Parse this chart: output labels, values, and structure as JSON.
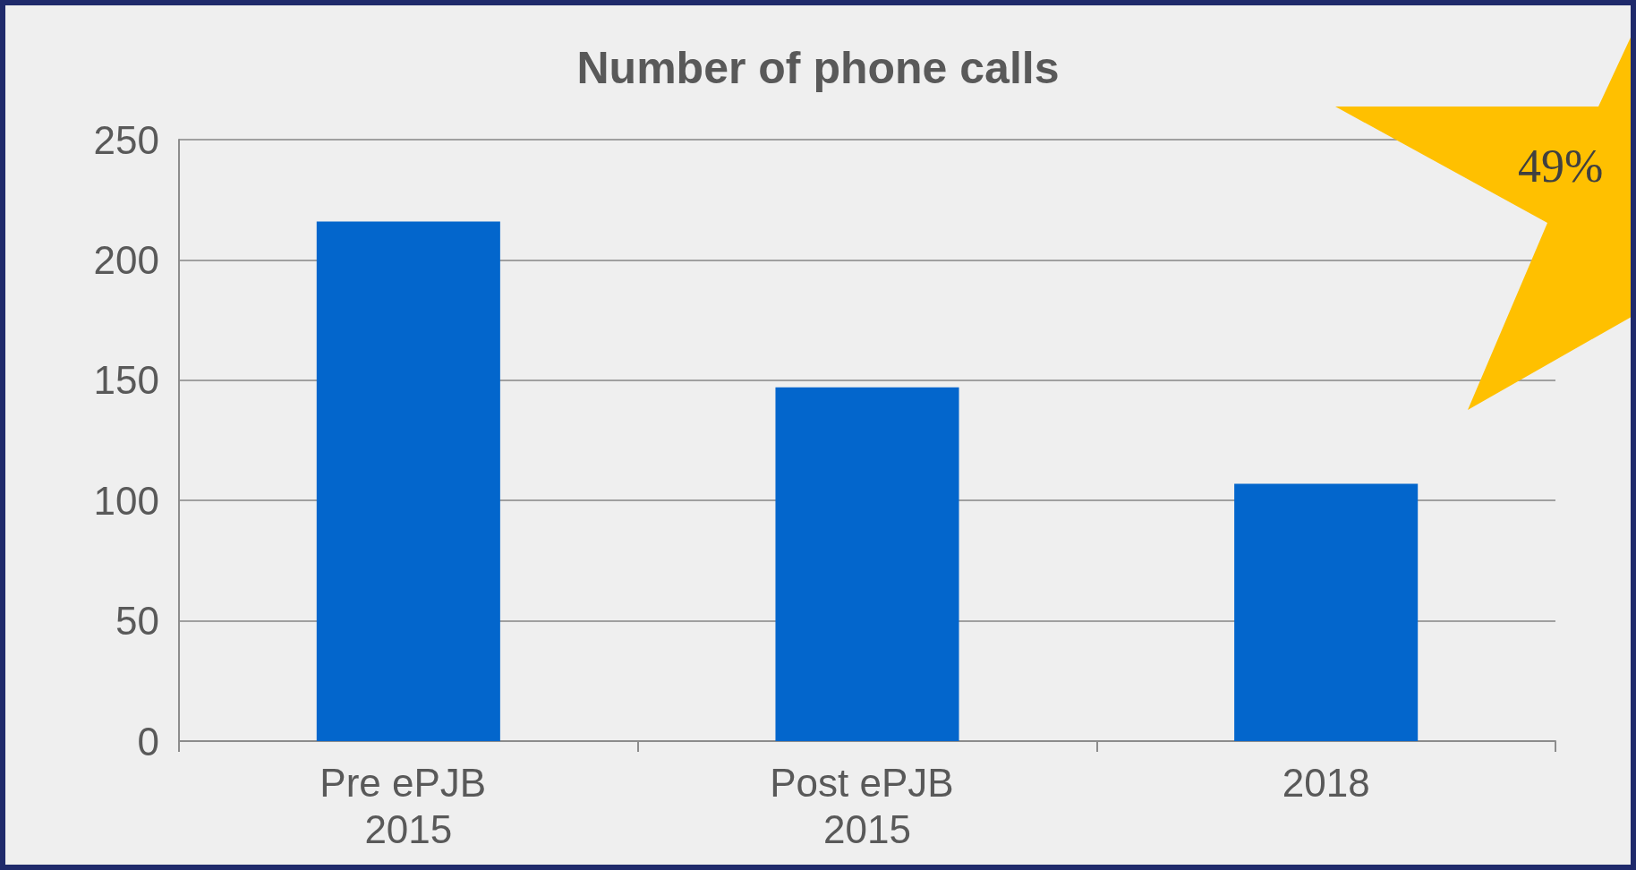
{
  "chart_data": {
    "type": "bar",
    "title": "Number of phone calls",
    "categories": [
      "Pre ePJB 2015",
      "Post ePJB 2015",
      "2018"
    ],
    "values": [
      216,
      147,
      107
    ],
    "color": "#0366cc",
    "ylim": [
      0,
      250
    ],
    "yticks": [
      0,
      50,
      100,
      150,
      200,
      250
    ],
    "grid": "y",
    "annotations": [
      "49%"
    ]
  }
}
